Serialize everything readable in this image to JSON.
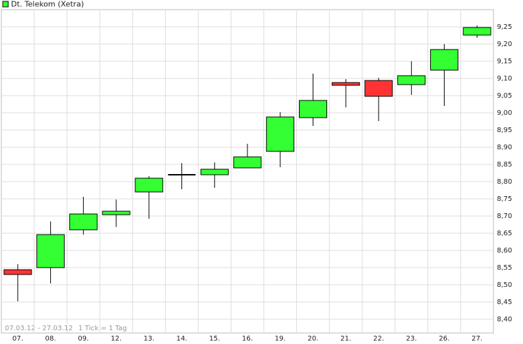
{
  "chart_data": {
    "type": "candlestick",
    "series": [
      {
        "name": "Dt. Telekom (Xetra)",
        "open": [
          8.544,
          8.55,
          8.66,
          8.704,
          8.77,
          8.82,
          8.82,
          8.84,
          8.888,
          8.986,
          9.088,
          9.094,
          9.082,
          9.124,
          9.226
        ],
        "high": [
          8.56,
          8.684,
          8.756,
          8.748,
          8.816,
          8.854,
          8.856,
          8.91,
          9.002,
          9.114,
          9.098,
          9.102,
          9.15,
          9.2,
          9.254
        ],
        "low": [
          8.452,
          8.504,
          8.646,
          8.668,
          8.692,
          8.778,
          8.782,
          8.84,
          8.842,
          8.962,
          9.016,
          8.976,
          9.052,
          9.02,
          9.218
        ],
        "close": [
          8.53,
          8.646,
          8.706,
          8.714,
          8.81,
          8.82,
          8.836,
          8.872,
          8.988,
          9.036,
          9.08,
          9.048,
          9.108,
          9.184,
          9.248
        ]
      }
    ],
    "categories": [
      "07.",
      "08.",
      "09.",
      "12.",
      "13.",
      "14.",
      "15.",
      "16.",
      "19.",
      "20.",
      "21.",
      "22.",
      "23.",
      "26.",
      "27."
    ],
    "ylim": [
      8.36,
      9.3
    ],
    "yticks": [
      {
        "value": 8.4,
        "label": "8,40"
      },
      {
        "value": 8.45,
        "label": "8,45"
      },
      {
        "value": 8.5,
        "label": "8,50"
      },
      {
        "value": 8.55,
        "label": "8,55"
      },
      {
        "value": 8.6,
        "label": "8,60"
      },
      {
        "value": 8.65,
        "label": "8,65"
      },
      {
        "value": 8.7,
        "label": "8,70"
      },
      {
        "value": 8.75,
        "label": "8,75"
      },
      {
        "value": 8.8,
        "label": "8,80"
      },
      {
        "value": 8.85,
        "label": "8,85"
      },
      {
        "value": 8.9,
        "label": "8,90"
      },
      {
        "value": 8.95,
        "label": "8,95"
      },
      {
        "value": 9.0,
        "label": "9,00"
      },
      {
        "value": 9.05,
        "label": "9,05"
      },
      {
        "value": 9.1,
        "label": "9,10"
      },
      {
        "value": 9.15,
        "label": "9,15"
      },
      {
        "value": 9.2,
        "label": "9,20"
      },
      {
        "value": 9.25,
        "label": "9,25"
      }
    ],
    "date_range": "07.03.12 - 27.03.12",
    "tick_note": "1 Tick = 1 Tag",
    "grid": true,
    "up_color": "#33ff33",
    "down_color": "#ff3333",
    "flat_color": "#000000"
  }
}
